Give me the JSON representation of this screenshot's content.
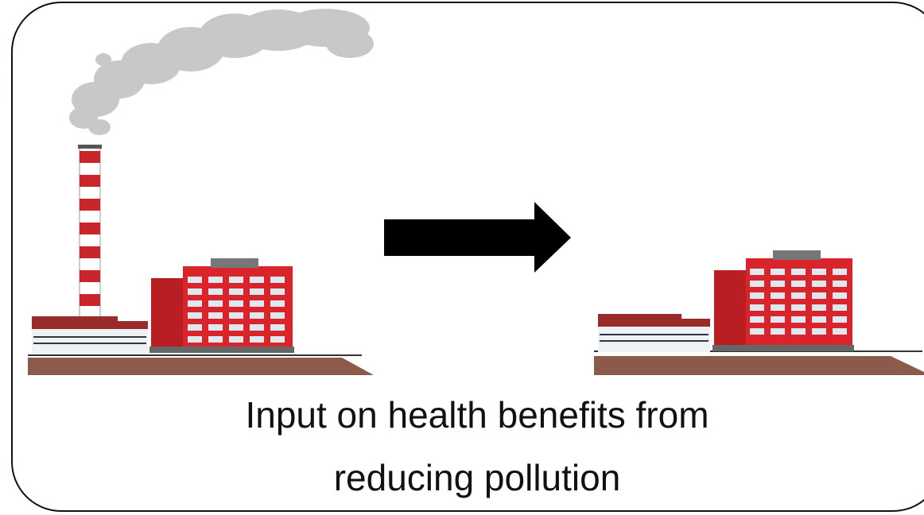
{
  "caption": {
    "lines": [
      "Input on health benefits from",
      "reducing pollution"
    ]
  }
}
